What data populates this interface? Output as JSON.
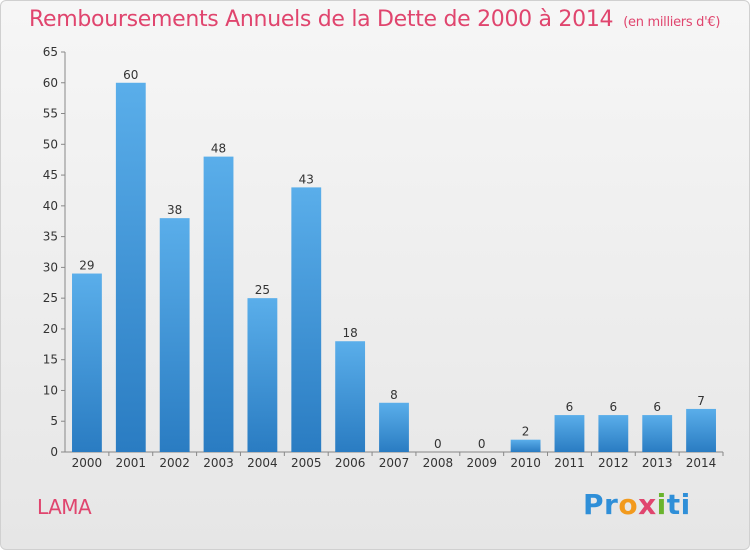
{
  "chart_data": {
    "type": "bar",
    "title": "Remboursements Annuels de la Dette de 2000 à 2014",
    "subtitle": "(en milliers d'€)",
    "categories": [
      "2000",
      "2001",
      "2002",
      "2003",
      "2004",
      "2005",
      "2006",
      "2007",
      "2008",
      "2009",
      "2010",
      "2011",
      "2012",
      "2013",
      "2014"
    ],
    "values": [
      29,
      60,
      38,
      48,
      25,
      43,
      18,
      8,
      0,
      0,
      2,
      6,
      6,
      6,
      7
    ],
    "ylim": [
      0,
      65
    ],
    "yticks": [
      0,
      5,
      10,
      15,
      20,
      25,
      30,
      35,
      40,
      45,
      50,
      55,
      60,
      65
    ],
    "grid": false,
    "bar_color": "#3d98de"
  },
  "commune": "LAMA",
  "logo": {
    "text": "Proxiti",
    "parts": [
      "Pr",
      "o",
      "x",
      "i",
      "ti"
    ]
  }
}
